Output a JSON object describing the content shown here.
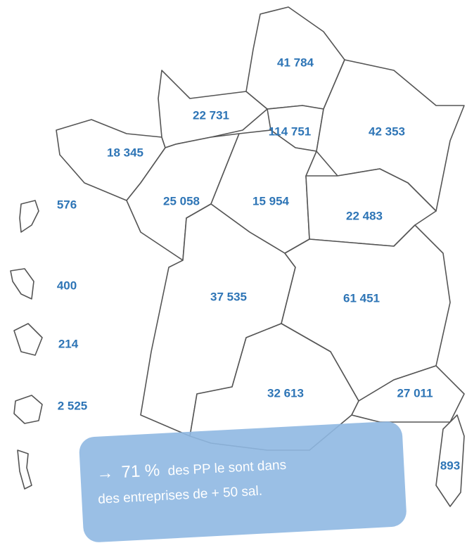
{
  "regions": [
    {
      "label": "41 784"
    },
    {
      "label": "22 731"
    },
    {
      "label": "114 751"
    },
    {
      "label": "42 353"
    },
    {
      "label": "18 345"
    },
    {
      "label": "576"
    },
    {
      "label": "25 058"
    },
    {
      "label": "15 954"
    },
    {
      "label": "22 483"
    },
    {
      "label": "400"
    },
    {
      "label": "37 535"
    },
    {
      "label": "61 451"
    },
    {
      "label": "214"
    },
    {
      "label": "32 613"
    },
    {
      "label": "27 011"
    },
    {
      "label": "2 525"
    },
    {
      "label": "893"
    }
  ],
  "callout": {
    "arrow": "→",
    "highlight": "71 %",
    "line1": "des PP  le sont dans",
    "line2": "des entreprises de + 50 sal."
  }
}
